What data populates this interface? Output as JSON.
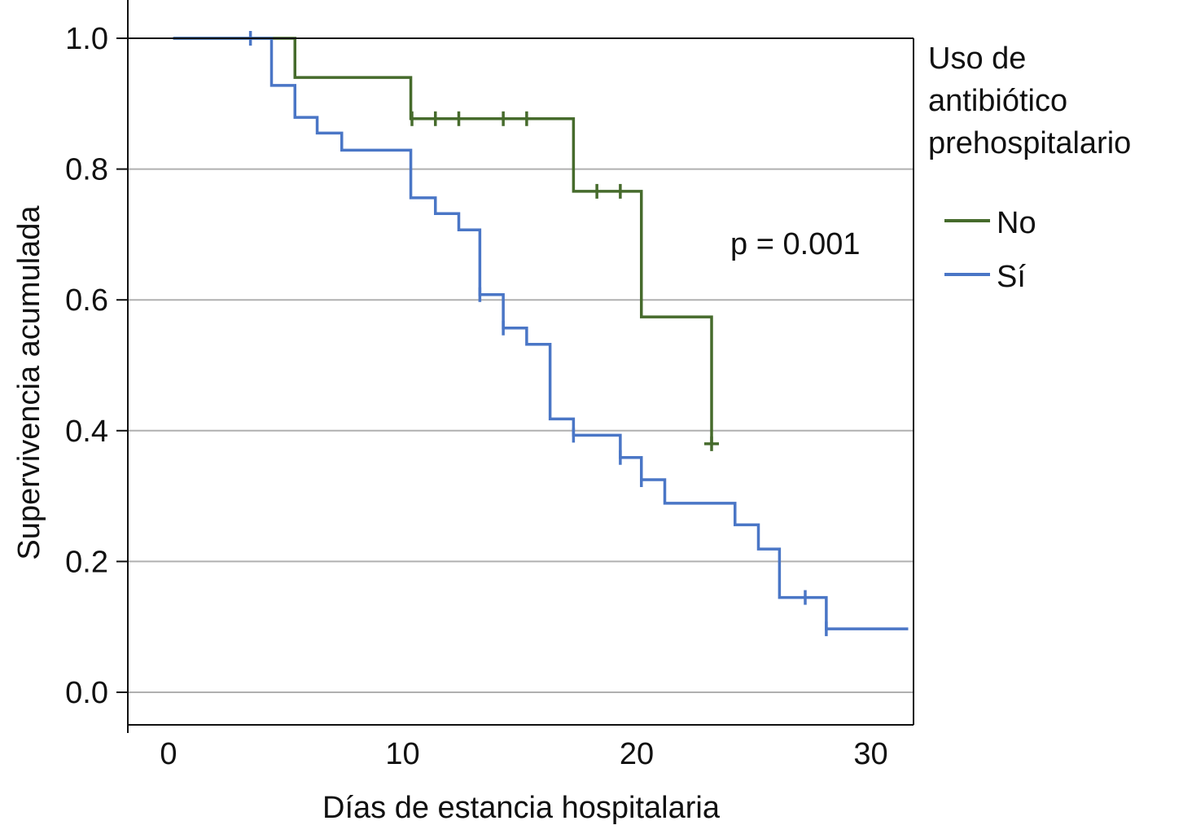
{
  "chart_data": {
    "type": "line",
    "subtype": "kaplan-meier step",
    "xlabel": "Días de estancia hospitalaria",
    "ylabel": "Supervivencia acumulada",
    "xlim": [
      -1.7,
      31.8
    ],
    "ylim": [
      -0.05,
      1.06
    ],
    "xticks": [
      0,
      10,
      20,
      30
    ],
    "xtick_labels": [
      "0",
      "10",
      "20",
      "30"
    ],
    "yticks": [
      0.0,
      0.2,
      0.4,
      0.6,
      0.8,
      1.0
    ],
    "ytick_labels": [
      "0.0",
      "0.2",
      "0.4",
      "0.6",
      "0.8",
      "1.0"
    ],
    "grid": "horizontal",
    "annotation": "p = 0.001",
    "legend": {
      "title": [
        "Uso de",
        "antibiótico",
        "prehospitalario"
      ],
      "placement": "right"
    },
    "series": [
      {
        "name": "No",
        "color": "#466b2c",
        "steps": [
          [
            0.2,
            1.0
          ],
          [
            5.4,
            0.94
          ],
          [
            10.35,
            0.877
          ],
          [
            17.3,
            0.766
          ],
          [
            20.2,
            0.574
          ],
          [
            23.2,
            0.38
          ]
        ],
        "end": 23.2,
        "censored": [
          [
            10.4,
            0.877
          ],
          [
            11.4,
            0.877
          ],
          [
            12.4,
            0.877
          ],
          [
            14.3,
            0.877
          ],
          [
            15.3,
            0.877
          ],
          [
            18.3,
            0.766
          ],
          [
            19.3,
            0.766
          ],
          [
            23.2,
            0.38
          ]
        ]
      },
      {
        "name": "Sí",
        "color": "#4a76c6",
        "steps": [
          [
            0.2,
            1.0
          ],
          [
            4.4,
            0.928
          ],
          [
            5.4,
            0.879
          ],
          [
            6.35,
            0.855
          ],
          [
            7.4,
            0.829
          ],
          [
            10.35,
            0.756
          ],
          [
            11.4,
            0.732
          ],
          [
            12.4,
            0.707
          ],
          [
            13.3,
            0.608
          ],
          [
            14.3,
            0.557
          ],
          [
            15.3,
            0.532
          ],
          [
            16.3,
            0.418
          ],
          [
            17.3,
            0.393
          ],
          [
            19.3,
            0.359
          ],
          [
            20.2,
            0.325
          ],
          [
            21.2,
            0.289
          ],
          [
            24.2,
            0.256
          ],
          [
            25.2,
            0.219
          ],
          [
            26.1,
            0.145
          ],
          [
            28.1,
            0.097
          ]
        ],
        "end": 31.6,
        "censored": [
          [
            3.5,
            1.0
          ],
          [
            13.3,
            0.608
          ],
          [
            14.3,
            0.557
          ],
          [
            17.3,
            0.393
          ],
          [
            19.3,
            0.359
          ],
          [
            20.2,
            0.325
          ],
          [
            27.2,
            0.145
          ],
          [
            28.1,
            0.097
          ]
        ]
      }
    ]
  }
}
